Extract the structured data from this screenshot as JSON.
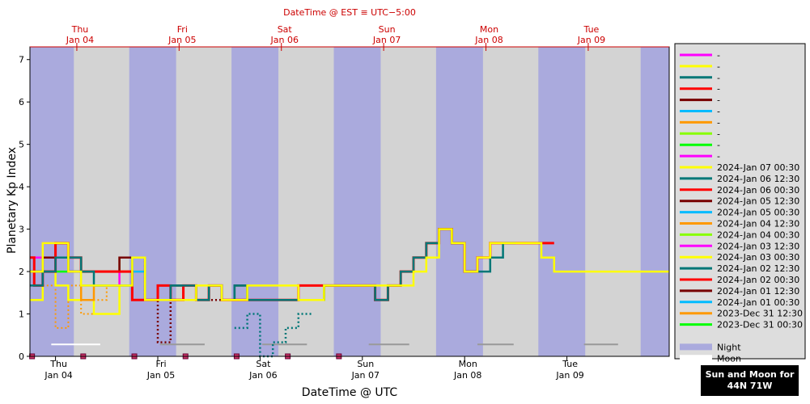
{
  "chart_data": {
    "type": "line",
    "top_title": "DateTime @ EST ≡ UTC−5:00",
    "xlabel": "DateTime @ UTC",
    "ylabel": "Planetary Kp Index",
    "ylim": [
      0,
      7.3
    ],
    "yticks": [
      0,
      1,
      2,
      3,
      4,
      5,
      6,
      7
    ],
    "xlim_hours": [
      0,
      150
    ],
    "bottom_ticks": [
      {
        "day": "Thu",
        "date": "Jan 04",
        "h": 6
      },
      {
        "day": "Fri",
        "date": "Jan 05",
        "h": 30
      },
      {
        "day": "Sat",
        "date": "Jan 06",
        "h": 54
      },
      {
        "day": "Sun",
        "date": "Jan 07",
        "h": 78
      },
      {
        "day": "Mon",
        "date": "Jan 08",
        "h": 102
      },
      {
        "day": "Tue",
        "date": "Jan 09",
        "h": 126
      }
    ],
    "top_ticks": [
      {
        "day": "Thu",
        "date": "Jan 04",
        "h": 11
      },
      {
        "day": "Fri",
        "date": "Jan 05",
        "h": 35
      },
      {
        "day": "Sat",
        "date": "Jan 06",
        "h": 59
      },
      {
        "day": "Sun",
        "date": "Jan 07",
        "h": 83
      },
      {
        "day": "Mon",
        "date": "Jan 08",
        "h": 107
      },
      {
        "day": "Tue",
        "date": "Jan 09",
        "h": 131
      }
    ],
    "night_bands": [
      [
        0,
        10.3
      ],
      [
        23.3,
        34.3
      ],
      [
        47.3,
        58.3
      ],
      [
        71.3,
        82.3
      ],
      [
        95.3,
        106.3
      ],
      [
        119.3,
        130.3
      ],
      [
        143.3,
        150
      ]
    ],
    "moon_bars": [
      [
        5,
        16.5
      ],
      [
        30.5,
        41
      ],
      [
        54.5,
        65
      ],
      [
        79.5,
        89
      ],
      [
        105,
        113.5
      ],
      [
        130,
        138
      ]
    ],
    "bottom_markers": [
      0.5,
      12.5,
      24.5,
      36.5,
      48.5,
      60.5,
      72.5
    ],
    "series": [
      {
        "name": "2024-Jan 07 00:30",
        "color": "#ffff00",
        "width": 2.5,
        "x": [
          0,
          3,
          9,
          12,
          24,
          27,
          39,
          45,
          51,
          63,
          69,
          75,
          90,
          93,
          96,
          99,
          102,
          105,
          108,
          111,
          120,
          123,
          129,
          135,
          141,
          144,
          150
        ],
        "y": [
          2.0,
          2.67,
          2.0,
          1.67,
          2.33,
          1.33,
          1.67,
          1.33,
          1.67,
          1.33,
          1.67,
          1.67,
          2.0,
          2.33,
          3.0,
          2.67,
          2.0,
          2.33,
          2.67,
          2.67,
          2.33,
          2.0,
          2.0,
          2.0,
          2.0,
          2.0,
          2.0
        ]
      },
      {
        "name": "2024-Jan 06 12:30",
        "color": "#007777",
        "width": 2.5,
        "x": [
          0,
          3,
          6,
          9,
          12,
          15,
          24,
          27,
          33,
          39,
          42,
          45,
          48,
          51,
          63,
          69,
          81,
          84,
          87,
          90,
          93,
          96,
          99,
          102,
          108,
          111
        ],
        "y": [
          1.67,
          2.0,
          2.33,
          2.33,
          2.0,
          1.67,
          2.33,
          1.33,
          1.67,
          1.33,
          1.67,
          1.33,
          1.67,
          1.33,
          1.33,
          1.67,
          1.33,
          1.67,
          2.0,
          2.33,
          2.67,
          3.0,
          2.67,
          2.0,
          2.33,
          2.67
        ]
      },
      {
        "name": "2024-Jan 06 00:30",
        "color": "#ff0000",
        "width": 3,
        "x": [
          0,
          1,
          3,
          6,
          9,
          12,
          21,
          23,
          24,
          30,
          33,
          36,
          39,
          42,
          45,
          48,
          51,
          63,
          69,
          81,
          84,
          87,
          90,
          93,
          96,
          99,
          102,
          105,
          108,
          111,
          120
        ],
        "y": [
          2.33,
          1.67,
          2.0,
          2.67,
          2.33,
          2.0,
          2.0,
          2.0,
          1.33,
          1.67,
          1.33,
          1.67,
          1.33,
          1.67,
          1.33,
          1.33,
          1.33,
          1.67,
          1.67,
          1.33,
          1.67,
          2.0,
          2.33,
          2.67,
          3.0,
          2.67,
          2.0,
          2.33,
          2.67,
          2.67,
          2.67
        ]
      },
      {
        "name": "2024-Jan 05 12:30",
        "color": "#770000",
        "width": 2.5,
        "x": [
          0,
          3,
          6,
          9,
          12,
          21,
          24,
          27,
          33,
          36,
          39,
          42,
          45,
          48,
          51,
          63,
          69,
          81,
          84,
          87,
          90,
          93,
          96,
          99,
          102
        ],
        "y": [
          2.0,
          2.33,
          2.67,
          2.0,
          2.0,
          2.33,
          2.33,
          1.33,
          1.67,
          1.33,
          1.33,
          1.67,
          1.33,
          1.67,
          1.33,
          1.33,
          1.67,
          1.33,
          1.67,
          2.0,
          2.33,
          2.67,
          3.0,
          2.67,
          2.0
        ]
      },
      {
        "name": "2024-Jan 05 00:30",
        "color": "#00bbff",
        "width": 2.5,
        "x": [
          0,
          3,
          6,
          9,
          12,
          24,
          27,
          33,
          36,
          42,
          45,
          48,
          51,
          63,
          69,
          81,
          84,
          87,
          90,
          93,
          96,
          99
        ],
        "y": [
          2.0,
          2.0,
          2.33,
          2.0,
          1.67,
          2.0,
          1.33,
          1.67,
          1.33,
          1.67,
          1.33,
          1.67,
          1.33,
          1.33,
          1.67,
          1.33,
          1.67,
          2.0,
          2.33,
          2.67,
          3.0,
          2.67
        ]
      },
      {
        "name": "2024-Jan 04 12:30",
        "color": "#ff9900",
        "width": 2.5,
        "x": [
          0,
          3,
          6,
          9,
          12,
          15,
          24,
          27,
          33,
          36,
          42,
          45,
          48,
          51,
          63,
          69,
          81,
          84,
          87,
          90,
          93,
          96
        ],
        "y": [
          2.0,
          2.33,
          2.33,
          2.0,
          1.33,
          1.67,
          2.0,
          1.33,
          1.67,
          1.33,
          1.67,
          1.33,
          1.67,
          1.33,
          1.33,
          1.67,
          1.33,
          1.67,
          2.0,
          2.33,
          2.67,
          3.0
        ]
      },
      {
        "name": "2024-Jan 04 00:30",
        "color": "#88ff00",
        "width": 2.5,
        "x": [
          0,
          3,
          6,
          9,
          12,
          21,
          24,
          27,
          33,
          36,
          42,
          45,
          48,
          51,
          63,
          69,
          81,
          84,
          87,
          90,
          93
        ],
        "y": [
          2.0,
          2.33,
          2.67,
          2.0,
          2.0,
          2.33,
          2.33,
          1.33,
          1.67,
          1.33,
          1.67,
          1.33,
          1.67,
          1.33,
          1.33,
          1.67,
          1.33,
          1.67,
          2.0,
          2.33,
          2.67
        ]
      },
      {
        "name": "2024-Jan 03 12:30",
        "color": "#ff00ff",
        "width": 2.5,
        "x": [
          0,
          3,
          9,
          12,
          21,
          24,
          27,
          33,
          36,
          42,
          45
        ],
        "y": [
          2.33,
          2.67,
          2.0,
          1.67,
          2.33,
          2.33,
          1.33,
          1.67,
          1.33,
          1.67,
          1.33
        ]
      },
      {
        "name": "2024-Jan 03 00:30",
        "color": "#ffff00",
        "width": 2.5,
        "x": [
          0,
          3,
          6,
          9,
          15,
          21,
          24,
          27,
          33,
          36
        ],
        "y": [
          1.33,
          2.0,
          1.67,
          1.33,
          1.0,
          2.0,
          2.0,
          1.33,
          1.67,
          1.33
        ]
      },
      {
        "name": "2024-Jan 02 12:30",
        "color": "#007777",
        "width": 2.5,
        "dash": true,
        "x": [
          48,
          51,
          54,
          57,
          60,
          63
        ],
        "y": [
          0.67,
          1.0,
          0.0,
          0.33,
          0.67,
          1.0
        ]
      },
      {
        "name": "2024-Jan 02 00:30",
        "color": "#ff0000",
        "width": 2.5,
        "x": [
          0,
          3,
          6,
          9,
          12,
          21
        ],
        "y": [
          2.0,
          2.0,
          2.67,
          2.0,
          2.0,
          2.0
        ]
      },
      {
        "name": "2024-Jan 01 12:30",
        "color": "#770000",
        "width": 2.5,
        "dash": true,
        "x": [
          24,
          27,
          30,
          33,
          36,
          39,
          42,
          45
        ],
        "y": [
          2.33,
          1.33,
          0.33,
          1.33,
          1.33,
          1.33,
          1.33,
          1.33
        ]
      },
      {
        "name": "2024-Jan 01 00:30",
        "color": "#00bbff",
        "width": 2.5,
        "x": [
          0,
          3,
          6,
          9
        ],
        "y": [
          2.0,
          2.0,
          2.33,
          2.0
        ]
      },
      {
        "name": "2023-Dec 31 12:30",
        "color": "#ff9900",
        "width": 2.0,
        "dash": true,
        "x": [
          3,
          6,
          9,
          12,
          15,
          18,
          21
        ],
        "y": [
          1.67,
          0.67,
          1.67,
          1.0,
          1.33,
          1.67,
          2.0
        ]
      },
      {
        "name": "2023-Dec 31 00:30",
        "color": "#00ff00",
        "width": 2.5,
        "x": [
          0,
          3,
          6
        ],
        "y": [
          2.0,
          2.0,
          2.0
        ]
      }
    ],
    "legend_blank_colors": [
      "#ff00ff",
      "#ffff00",
      "#007777",
      "#ff0000",
      "#770000",
      "#00bbff",
      "#ff9900",
      "#88ff00",
      "#00ff00",
      "#ff00ff"
    ],
    "legend_blank_label": "-",
    "legend_night": {
      "label": "Night",
      "color": "#aaaadd"
    },
    "legend_moon": {
      "label": "Moon",
      "color": "#ffffff"
    }
  },
  "badge": {
    "line1": "Sun and Moon for",
    "line2": "44N 71W"
  }
}
